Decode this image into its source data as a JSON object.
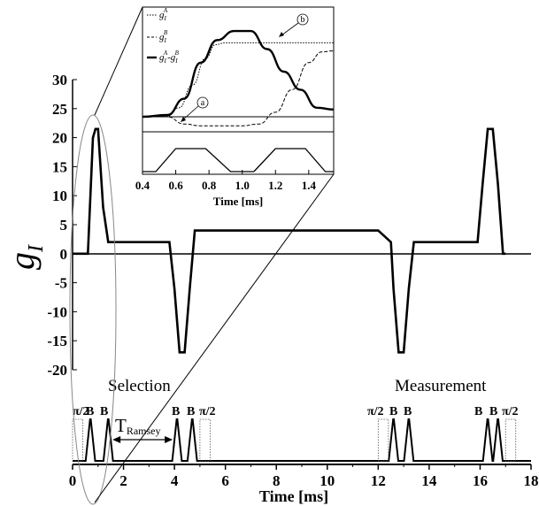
{
  "chart_data": [
    {
      "type": "line",
      "ylabel_main": "g",
      "ylabel_sub": "I",
      "xlabel": "Time [ms]",
      "xlim": [
        0,
        18
      ],
      "ylim": [
        -20,
        30
      ],
      "x_ticks": [
        "0",
        "2",
        "4",
        "6",
        "8",
        "10",
        "12",
        "14",
        "16",
        "18"
      ],
      "y_ticks": [
        "-20",
        "-15",
        "-10",
        "-5",
        "0",
        "5",
        "10",
        "15",
        "20",
        "25",
        "30"
      ],
      "series": [
        {
          "x": [
            0,
            0.6,
            0.8,
            0.9,
            1.0,
            1.2,
            1.4,
            1.6,
            3.8,
            4.0,
            4.2,
            4.3,
            4.4,
            4.6,
            4.8,
            8.0,
            12.0,
            12.5,
            12.6,
            12.8,
            12.9,
            13.0,
            13.2,
            13.4,
            14.0,
            15.9,
            16.1,
            16.3,
            16.4,
            16.5,
            16.7,
            16.9,
            17.0
          ],
          "y": [
            0,
            0,
            20,
            21.5,
            21.5,
            8,
            2,
            2,
            2,
            -6,
            -17,
            -17,
            -17,
            -6,
            4,
            4,
            4,
            2,
            -6,
            -17,
            -17,
            -17,
            -6,
            2,
            2,
            2,
            12,
            21.5,
            21.5,
            21.5,
            12,
            0,
            0
          ]
        }
      ],
      "annotations": [
        "Selection",
        "Measurement"
      ],
      "pulse_labels": [
        "π/2",
        "B",
        "B",
        "B",
        "B",
        "π/2",
        "π/2",
        "B",
        "B",
        "B",
        "B",
        "π/2"
      ],
      "pulse_sequence": {
        "high_intervals": [
          [
            0.6,
            0.8
          ],
          [
            1.3,
            1.5
          ],
          [
            4.0,
            4.2
          ],
          [
            4.6,
            4.8
          ],
          [
            12.5,
            12.7
          ],
          [
            13.1,
            13.3
          ],
          [
            16.2,
            16.4
          ],
          [
            16.6,
            16.8
          ]
        ],
        "pi2_boxes": [
          [
            0.0,
            0.4
          ],
          [
            5.0,
            5.4
          ],
          [
            12.0,
            12.4
          ],
          [
            17.0,
            17.4
          ]
        ]
      },
      "ramsey_label": "T",
      "ramsey_sub": "Ramsey",
      "ramsey_interval": [
        1.5,
        4.0
      ]
    },
    {
      "type": "line",
      "xlabel": "Time [ms]",
      "xlim": [
        0.4,
        1.55
      ],
      "x_ticks": [
        "0.4",
        "0.6",
        "0.8",
        "1.0",
        "1.2",
        "1.4"
      ],
      "legend_placement": "top-left",
      "series": [
        {
          "name": "g_I^A",
          "x": [
            0.4,
            0.55,
            0.62,
            0.7,
            0.78,
            0.84,
            0.9,
            1.0,
            1.55
          ],
          "y": [
            0,
            0.005,
            0.1,
            0.35,
            0.65,
            0.8,
            0.82,
            0.82,
            0.82
          ]
        },
        {
          "name": "g_I^B",
          "x": [
            0.4,
            0.55,
            0.65,
            0.75,
            1.0,
            1.1,
            1.2,
            1.3,
            1.4,
            1.48,
            1.55
          ],
          "y": [
            0,
            0,
            -0.08,
            -0.1,
            -0.1,
            -0.08,
            0.05,
            0.3,
            0.6,
            0.72,
            0.73
          ]
        },
        {
          "name": "g_I^A-g_I^B",
          "x": [
            0.4,
            0.55,
            0.65,
            0.75,
            0.85,
            0.95,
            1.05,
            1.15,
            1.25,
            1.35,
            1.45,
            1.55
          ],
          "y": [
            0,
            0.02,
            0.2,
            0.6,
            0.85,
            0.95,
            0.95,
            0.75,
            0.5,
            0.3,
            0.1,
            0.08
          ]
        }
      ],
      "legend": {
        "a": {
          "base": "g",
          "sub": "I",
          "sup": "A"
        },
        "b": {
          "base": "g",
          "sub": "I",
          "sup": "B"
        },
        "diff": {
          "base1": "g",
          "sub1": "I",
          "sup1": "A",
          "dash": "-",
          "base2": "g",
          "sub2": "I",
          "sup2": "B"
        }
      },
      "markers": [
        "a",
        "b"
      ]
    }
  ]
}
